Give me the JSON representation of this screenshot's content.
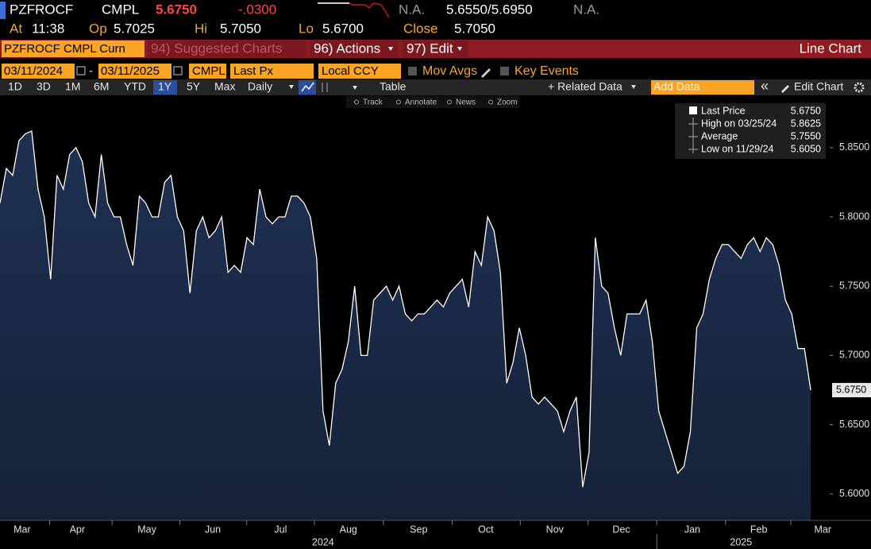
{
  "header": {
    "ticker": "PZFROCF",
    "exchange": "CMPL",
    "price": "5.6750",
    "change": "-.0300",
    "bid_na": "N.A.",
    "bid_ask": "5.6550/5.6950",
    "ask_na": "N.A.",
    "at_label": "At",
    "time": "11:38",
    "op_label": "Op",
    "op": "5.7025",
    "hi_label": "Hi",
    "hi": "5.7050",
    "lo_label": "Lo",
    "lo": "5.6700",
    "close_label": "Close",
    "close": "5.7050"
  },
  "menu": {
    "security": "PZFROCF CMPL Curn",
    "suggested": "94) Suggested Charts",
    "actions": "96) Actions",
    "edit": "97) Edit",
    "view": "Line Chart"
  },
  "fields": {
    "start_date": "03/11/2024",
    "dash": "-",
    "end_date": "03/11/2025",
    "source": "CMPL",
    "field": "Last Px",
    "currency": "Local CCY",
    "mov_avgs": "Mov Avgs",
    "key_events": "Key Events"
  },
  "toolbar": {
    "ranges": [
      "1D",
      "3D",
      "1M",
      "6M",
      "YTD",
      "1Y",
      "5Y",
      "Max"
    ],
    "selected_range": 5,
    "frequency": "Daily",
    "table": "Table",
    "related": "+ Related Data",
    "add_data": "Add Data",
    "collapse": "«",
    "edit_chart": "Edit Chart"
  },
  "tools": [
    "Track",
    "Annotate",
    "News",
    "Zoom"
  ],
  "chart_data": {
    "type": "line",
    "series": [
      {
        "name": "Last Price",
        "color": "#ffffff",
        "last_value_label": "5.6750",
        "values": [
          5.81,
          5.835,
          5.83,
          5.855,
          5.86,
          5.862,
          5.82,
          5.8,
          5.755,
          5.83,
          5.82,
          5.845,
          5.85,
          5.84,
          5.81,
          5.8,
          5.845,
          5.81,
          5.8,
          5.8,
          5.78,
          5.765,
          5.815,
          5.81,
          5.8,
          5.8,
          5.825,
          5.83,
          5.8,
          5.79,
          5.745,
          5.79,
          5.8,
          5.785,
          5.79,
          5.8,
          5.76,
          5.765,
          5.76,
          5.785,
          5.78,
          5.82,
          5.8,
          5.795,
          5.8,
          5.8,
          5.815,
          5.815,
          5.81,
          5.8,
          5.77,
          5.66,
          5.635,
          5.68,
          5.69,
          5.71,
          5.75,
          5.7,
          5.7,
          5.74,
          5.745,
          5.75,
          5.74,
          5.75,
          5.73,
          5.725,
          5.73,
          5.73,
          5.735,
          5.74,
          5.735,
          5.745,
          5.75,
          5.755,
          5.735,
          5.775,
          5.765,
          5.8,
          5.79,
          5.76,
          5.68,
          5.695,
          5.72,
          5.7,
          5.67,
          5.665,
          5.67,
          5.665,
          5.66,
          5.645,
          5.66,
          5.67,
          5.605,
          5.63,
          5.785,
          5.75,
          5.745,
          5.72,
          5.7,
          5.73,
          5.73,
          5.73,
          5.74,
          5.71,
          5.66,
          5.645,
          5.63,
          5.615,
          5.62,
          5.645,
          5.72,
          5.73,
          5.755,
          5.77,
          5.78,
          5.78,
          5.775,
          5.77,
          5.78,
          5.785,
          5.775,
          5.785,
          5.78,
          5.765,
          5.74,
          5.73,
          5.705,
          5.705,
          5.675
        ]
      }
    ],
    "stats": [
      {
        "label": "High on 03/25/24",
        "value": "5.8625"
      },
      {
        "label": "Average",
        "value": "5.7550"
      },
      {
        "label": "Low on 11/29/24",
        "value": "5.6050"
      }
    ],
    "xlim": [
      0,
      131
    ],
    "xticks": [
      {
        "value": 3.5,
        "label": "Mar"
      },
      {
        "value": 12.2,
        "label": "Apr"
      },
      {
        "value": 23.2,
        "label": "May"
      },
      {
        "value": 33.6,
        "label": "Jun"
      },
      {
        "value": 44.3,
        "label": "Jul"
      },
      {
        "value": 55,
        "label": "Aug"
      },
      {
        "value": 66.1,
        "label": "Sep"
      },
      {
        "value": 76.7,
        "label": "Oct"
      },
      {
        "value": 87.6,
        "label": "Nov"
      },
      {
        "value": 98.1,
        "label": "Dec"
      },
      {
        "value": 109.3,
        "label": "Jan"
      },
      {
        "value": 119.8,
        "label": "Feb"
      },
      {
        "value": 129.9,
        "label": "Mar"
      }
    ],
    "year_labels": [
      {
        "value": 51,
        "label": "2024"
      },
      {
        "value": 117,
        "label": "2025"
      }
    ],
    "ylim": [
      5.581,
      5.882
    ],
    "yticks": [
      {
        "value": 5.6,
        "label": "5.6000"
      },
      {
        "value": 5.65,
        "label": "5.6500"
      },
      {
        "value": 5.7,
        "label": "5.7000"
      },
      {
        "value": 5.75,
        "label": "5.7500"
      },
      {
        "value": 5.8,
        "label": "5.8000"
      },
      {
        "value": 5.85,
        "label": "5.8500"
      }
    ],
    "area_color": "#1b2a47"
  }
}
